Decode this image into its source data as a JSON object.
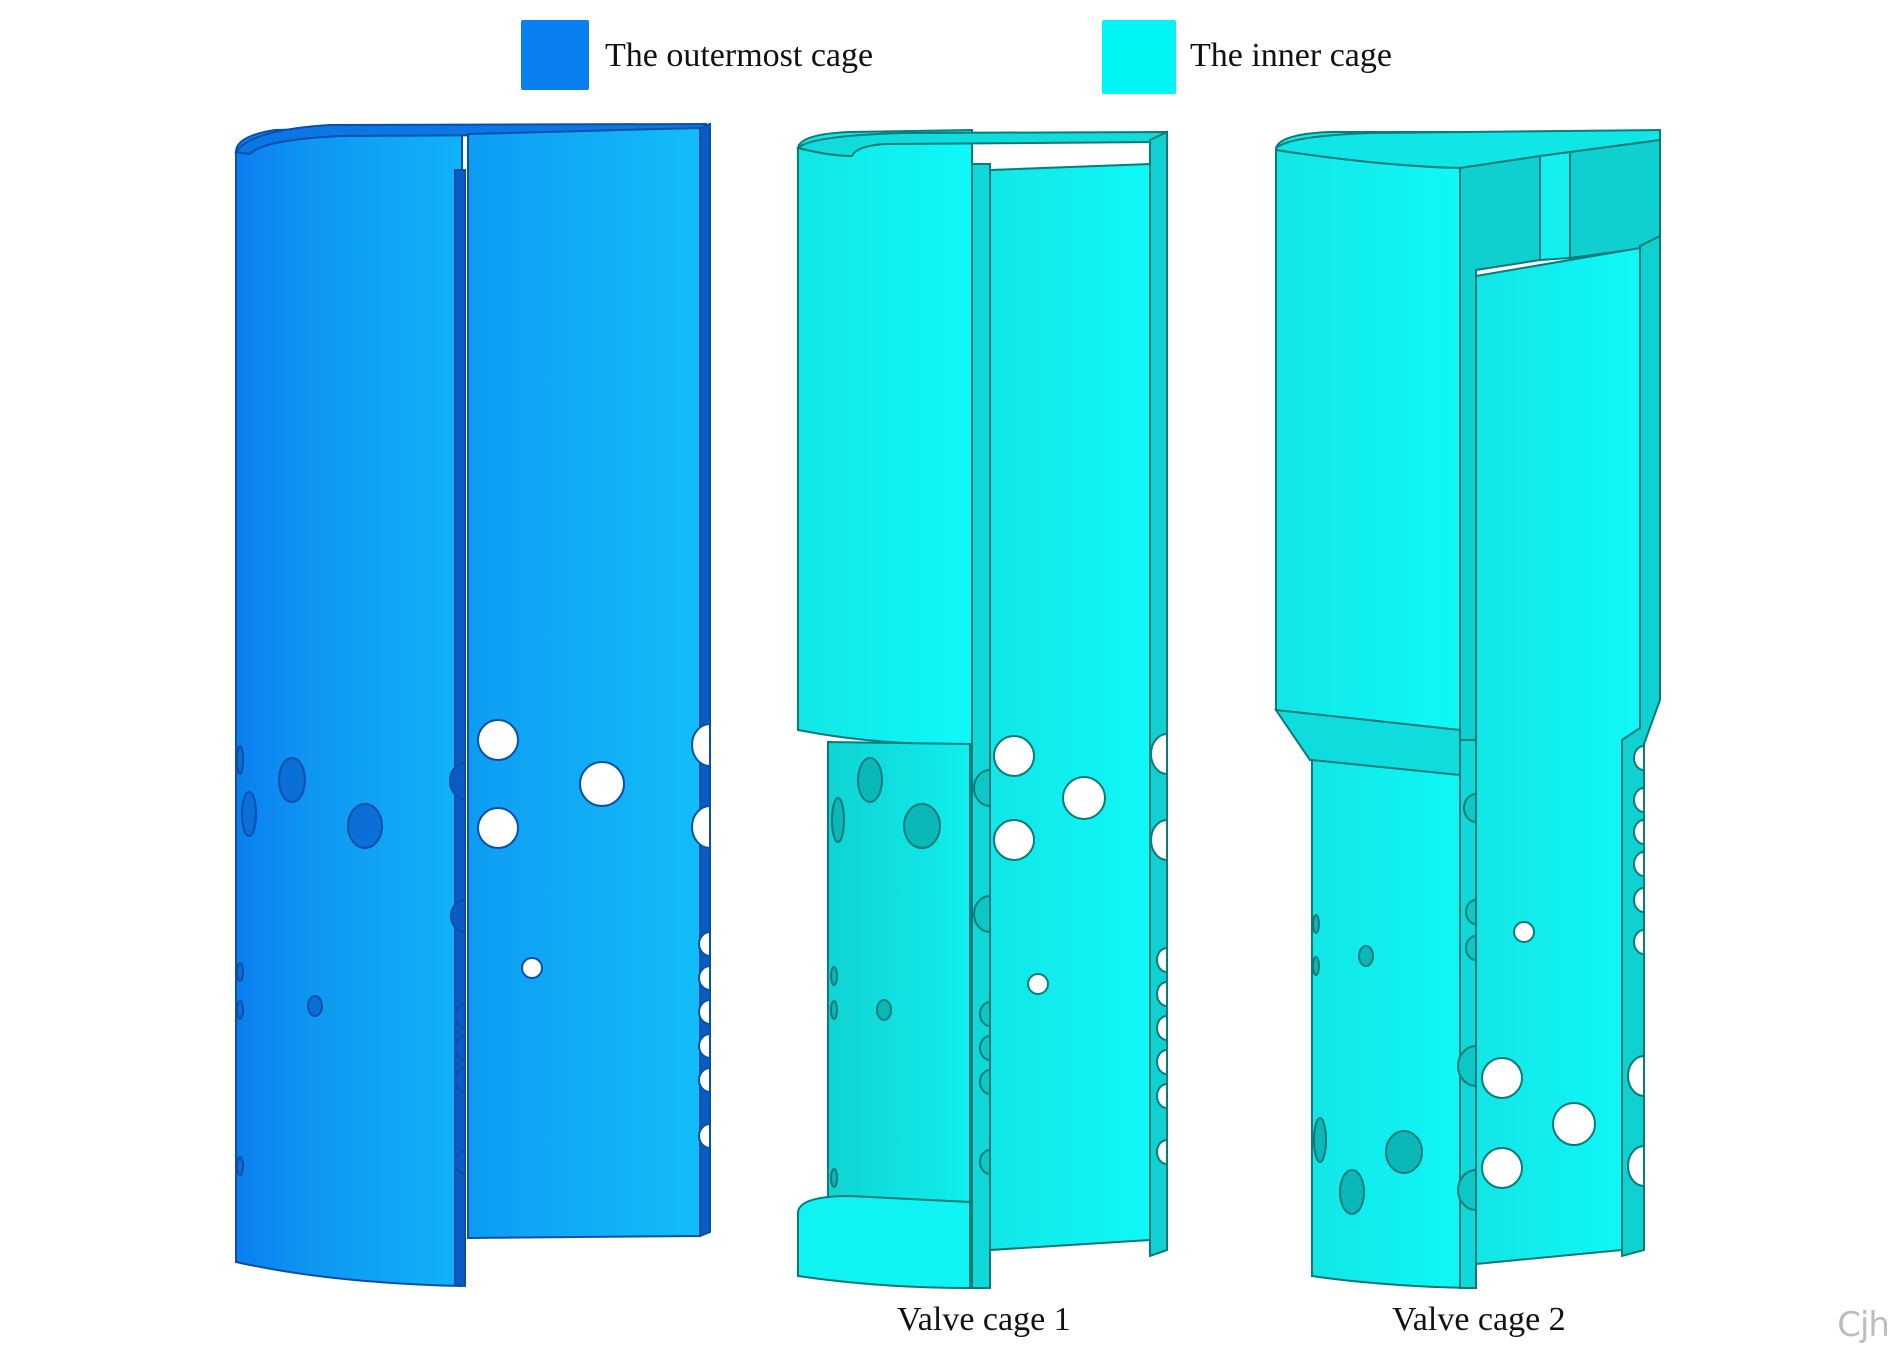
{
  "legend": [
    {
      "label": "The outermost cage",
      "color": "#0a7ff0"
    },
    {
      "label": "The inner cage",
      "color": "#00f5f5"
    }
  ],
  "captions": {
    "cage1": "Valve cage 1",
    "cage2": "Valve cage 2"
  },
  "watermark": "Cjh",
  "colors": {
    "outer_face": "#14a8f5",
    "outer_dark": "#0c6fd9",
    "outer_edge": "#0a4fa8",
    "inner_face": "#0ff0f0",
    "inner_shade": "#10cfcf",
    "inner_edge": "#0a7a7a",
    "hole": "#ffffff"
  }
}
